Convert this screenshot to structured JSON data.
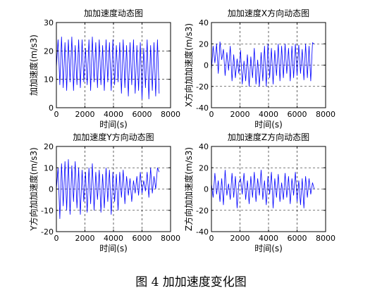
{
  "figure_caption": "图 4  加加速度变化图",
  "line_color": "#0000ff",
  "chart_data": [
    {
      "type": "line",
      "title": "加加速度动态图",
      "xlabel": "时间(s)",
      "ylabel": "加加速度(m/s3)",
      "xlim": [
        0,
        8000
      ],
      "ylim": [
        0,
        30
      ],
      "xticks": [
        0,
        2000,
        4000,
        6000,
        8000
      ],
      "yticks": [
        0,
        10,
        20,
        30
      ],
      "grid": "dashed",
      "data_span": [
        0,
        7200
      ],
      "series": [
        {
          "x": [
            0,
            120,
            240,
            360,
            480,
            600,
            720,
            840,
            960,
            1080,
            1200,
            1320,
            1440,
            1560,
            1680,
            1800,
            1920,
            2040,
            2160,
            2280,
            2400,
            2520,
            2640,
            2760,
            2880,
            3000,
            3120,
            3240,
            3360,
            3480,
            3600,
            3720,
            3840,
            3960,
            4080,
            4200,
            4320,
            4440,
            4560,
            4680,
            4800,
            4920,
            5040,
            5160,
            5280,
            5400,
            5520,
            5640,
            5760,
            5880,
            6000,
            6120,
            6240,
            6360,
            6480,
            6600,
            6720,
            6840,
            6960,
            7080,
            7200
          ],
          "y": [
            14,
            24,
            8,
            25,
            7,
            23,
            6,
            24,
            9,
            25,
            6,
            22,
            8,
            24,
            7,
            24,
            9,
            21,
            8,
            24,
            6,
            25,
            9,
            23,
            7,
            24,
            8,
            22,
            6,
            24,
            9,
            23,
            6,
            24,
            8,
            22,
            9,
            23,
            5,
            24,
            7,
            22,
            4,
            23,
            8,
            24,
            5,
            22,
            6,
            23,
            3,
            21,
            7,
            24,
            3,
            22,
            6,
            23,
            4,
            24,
            5
          ]
        }
      ]
    },
    {
      "type": "line",
      "title": "加加速度X方向动态图",
      "xlabel": "时间(s)",
      "ylabel": "X方向加加速度(m/s3)",
      "xlim": [
        0,
        8000
      ],
      "ylim": [
        -40,
        40
      ],
      "xticks": [
        0,
        2000,
        4000,
        6000,
        8000
      ],
      "yticks": [
        -40,
        -20,
        0,
        20,
        40
      ],
      "grid": "dashed",
      "data_span": [
        0,
        7200
      ],
      "series": [
        {
          "x": [
            0,
            120,
            240,
            360,
            480,
            600,
            720,
            840,
            960,
            1080,
            1200,
            1320,
            1440,
            1560,
            1680,
            1800,
            1920,
            2040,
            2160,
            2280,
            2400,
            2520,
            2640,
            2760,
            2880,
            3000,
            3120,
            3240,
            3360,
            3480,
            3600,
            3720,
            3840,
            3960,
            4080,
            4200,
            4320,
            4440,
            4560,
            4680,
            4800,
            4920,
            5040,
            5160,
            5280,
            5400,
            5520,
            5640,
            5760,
            5880,
            6000,
            6120,
            6240,
            6360,
            6480,
            6600,
            6720,
            6840,
            6960,
            7080,
            7200
          ],
          "y": [
            -5,
            18,
            2,
            20,
            -8,
            22,
            5,
            15,
            -10,
            12,
            -5,
            18,
            -15,
            10,
            -12,
            6,
            -8,
            14,
            -18,
            4,
            -15,
            10,
            -20,
            8,
            -12,
            16,
            -18,
            5,
            -20,
            12,
            -15,
            18,
            -20,
            20,
            -12,
            16,
            -18,
            14,
            -10,
            20,
            -15,
            18,
            -12,
            20,
            -8,
            16,
            -15,
            18,
            -12,
            20,
            -10,
            19,
            -8,
            15,
            -14,
            20,
            -12,
            18,
            -15,
            21,
            20
          ]
        }
      ]
    },
    {
      "type": "line",
      "title": "加加速度Y方向动态图",
      "xlabel": "时间(s)",
      "ylabel": "Y方向加加速度(m/s3)",
      "xlim": [
        0,
        8000
      ],
      "ylim": [
        -20,
        20
      ],
      "xticks": [
        0,
        2000,
        4000,
        6000,
        8000
      ],
      "yticks": [
        -20,
        -10,
        0,
        10,
        20
      ],
      "grid": "dashed",
      "data_span": [
        0,
        7200
      ],
      "series": [
        {
          "x": [
            0,
            120,
            240,
            360,
            480,
            600,
            720,
            840,
            960,
            1080,
            1200,
            1320,
            1440,
            1560,
            1680,
            1800,
            1920,
            2040,
            2160,
            2280,
            2400,
            2520,
            2640,
            2760,
            2880,
            3000,
            3120,
            3240,
            3360,
            3480,
            3600,
            3720,
            3840,
            3960,
            4080,
            4200,
            4320,
            4440,
            4560,
            4680,
            4800,
            4920,
            5040,
            5160,
            5280,
            5400,
            5520,
            5640,
            5760,
            5880,
            6000,
            6120,
            6240,
            6360,
            6480,
            6600,
            6720,
            6840,
            6960,
            7080,
            7200
          ],
          "y": [
            0,
            10,
            -14,
            12,
            -8,
            13,
            -10,
            14,
            -12,
            11,
            -6,
            13,
            -9,
            10,
            -12,
            9,
            -6,
            8,
            -11,
            10,
            -7,
            12,
            -10,
            8,
            -5,
            9,
            -11,
            7,
            -9,
            10,
            -6,
            9,
            -12,
            8,
            -6,
            7,
            -10,
            8,
            -4,
            9,
            -7,
            6,
            -3,
            5,
            -6,
            4,
            -2,
            6,
            -3,
            8,
            -2,
            4,
            -1,
            8,
            -4,
            10,
            -2,
            6,
            0,
            10,
            8
          ]
        }
      ]
    },
    {
      "type": "line",
      "title": "加加速度Z方向动态图",
      "xlabel": "时间(s)",
      "ylabel": "Z方向加加速度(m/s3)",
      "xlim": [
        0,
        8000
      ],
      "ylim": [
        -40,
        40
      ],
      "xticks": [
        0,
        2000,
        4000,
        6000,
        8000
      ],
      "yticks": [
        -40,
        -20,
        0,
        20,
        40
      ],
      "grid": "dashed",
      "data_span": [
        0,
        7200
      ],
      "series": [
        {
          "x": [
            0,
            120,
            240,
            360,
            480,
            600,
            720,
            840,
            960,
            1080,
            1200,
            1320,
            1440,
            1560,
            1680,
            1800,
            1920,
            2040,
            2160,
            2280,
            2400,
            2520,
            2640,
            2760,
            2880,
            3000,
            3120,
            3240,
            3360,
            3480,
            3600,
            3720,
            3840,
            3960,
            4080,
            4200,
            4320,
            4440,
            4560,
            4680,
            4800,
            4920,
            5040,
            5160,
            5280,
            5400,
            5520,
            5640,
            5760,
            5880,
            6000,
            6120,
            6240,
            6360,
            6480,
            6600,
            6720,
            6840,
            6960,
            7080,
            7200
          ],
          "y": [
            5,
            -8,
            15,
            -5,
            8,
            -12,
            10,
            -15,
            18,
            -6,
            5,
            -10,
            15,
            -8,
            12,
            -18,
            6,
            10,
            -5,
            15,
            -10,
            8,
            -14,
            12,
            -8,
            16,
            -12,
            10,
            -6,
            18,
            -10,
            8,
            -15,
            12,
            -5,
            16,
            -18,
            10,
            -8,
            14,
            -12,
            6,
            -10,
            15,
            -8,
            12,
            -14,
            10,
            -6,
            16,
            -12,
            8,
            -15,
            10,
            -18,
            12,
            -8,
            10,
            -5,
            6,
            0
          ]
        }
      ]
    }
  ]
}
